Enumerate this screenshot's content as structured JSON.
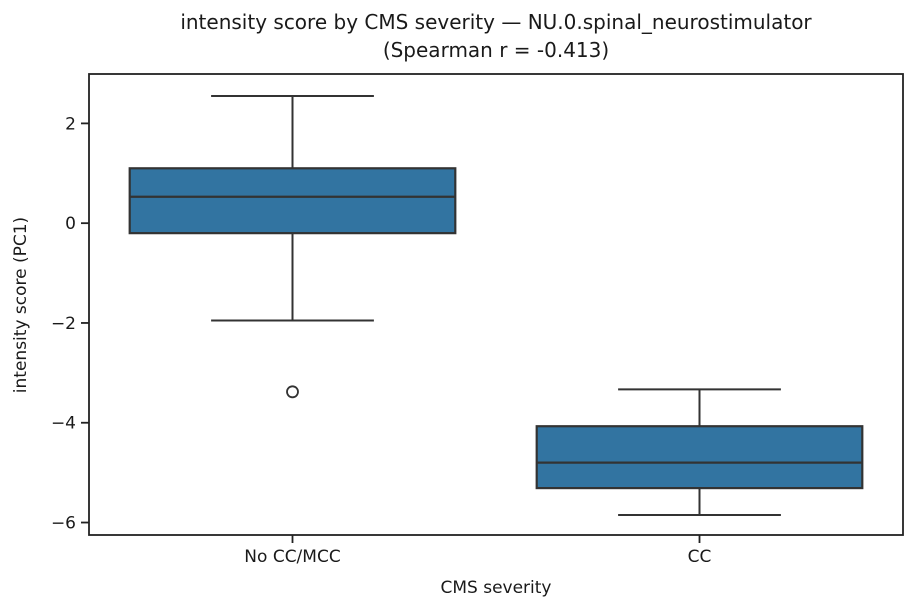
{
  "figure": {
    "title_line1": "intensity score by CMS severity — NU.0.spinal_neurostimulator",
    "title_line2": "(Spearman r = -0.413)"
  },
  "chart_data": {
    "type": "boxplot",
    "title": "intensity score by CMS severity — NU.0.spinal_neurostimulator (Spearman r = -0.413)",
    "xlabel": "CMS severity",
    "ylabel": "intensity score (PC1)",
    "categories": [
      "No CC/MCC",
      "CC"
    ],
    "yticks": [
      2,
      0,
      -2,
      -4,
      -6
    ],
    "ylim": [
      -6.25,
      2.99
    ],
    "grid": false,
    "legend": "none",
    "boxes": [
      {
        "category": "No CC/MCC",
        "whisker_low": -1.95,
        "q1": -0.2,
        "median": 0.53,
        "q3": 1.1,
        "whisker_high": 2.55,
        "outliers": [
          -3.38
        ]
      },
      {
        "category": "CC",
        "whisker_low": -5.85,
        "q1": -5.31,
        "median": -4.8,
        "q3": -4.07,
        "whisker_high": -3.33,
        "outliers": []
      }
    ],
    "colors": {
      "box_fill": "#3274a1",
      "box_edge": "#333333",
      "spine": "#222222",
      "text": "#1a1a1a",
      "background": "#ffffff"
    }
  }
}
